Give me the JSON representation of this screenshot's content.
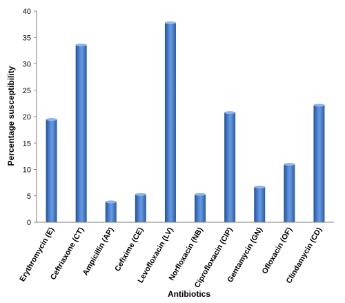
{
  "chart_data": {
    "type": "bar",
    "title": "",
    "xlabel": "Antibiotics",
    "ylabel": "Percentage susceptibility",
    "ylim": [
      0,
      40
    ],
    "yticks": [
      0,
      5,
      10,
      15,
      20,
      25,
      30,
      35,
      40
    ],
    "grid": false,
    "legend": "none",
    "bar_color": "#3d73c4",
    "categories": [
      "Erythromycin (E)",
      "Ceftriaxone  (CT)",
      "Ampicillin  (AP)",
      "Cefixime    (CE)",
      "Levofloxacin  (LV)",
      "Norfloxacin    (NB)",
      "Ciprofloxacin  (CIP)",
      "Gentamycin    (GN)",
      "Ofloxacin     (OF)",
      "Clindamycin   (CD)"
    ],
    "values": [
      19.6,
      33.7,
      4.0,
      5.4,
      37.9,
      5.4,
      20.9,
      6.8,
      11.1,
      22.3
    ]
  }
}
